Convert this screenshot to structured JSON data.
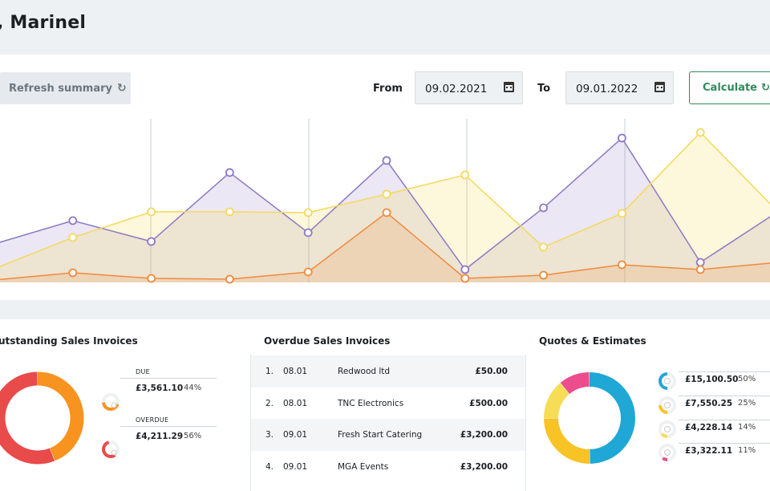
{
  "greeting": ", Marinel",
  "toolbar": {
    "refresh_label": "Refresh summary",
    "refresh_icon": "↻",
    "from_label": "From",
    "from_value": "09.02.2021",
    "to_label": "To",
    "to_value": "09.01.2022",
    "calculate_label": "Calculate",
    "calculate_icon": "↻"
  },
  "colors": {
    "purple": "#8e79c4",
    "yellow": "#f5d95a",
    "orange": "#f08a3c",
    "green": "#2f8a5b",
    "red": "#e94a4a",
    "amber": "#f7931e",
    "blue": "#1fa8d6",
    "pink": "#ee4d8d",
    "gold": "#f7c325",
    "lemon": "#f6dd55"
  },
  "chart_data": {
    "type": "area",
    "series": [
      {
        "key": "purple",
        "values": [
          48,
          77,
          51,
          137,
          62,
          152,
          16,
          93,
          180,
          25,
          89
        ]
      },
      {
        "key": "yellow",
        "values": [
          17,
          56,
          88,
          88,
          87,
          110,
          134,
          44,
          86,
          187,
          87
        ]
      },
      {
        "key": "orange",
        "values": [
          3,
          12,
          5,
          4,
          13,
          87,
          5,
          9,
          22,
          16,
          25
        ]
      }
    ],
    "ylim": [
      0,
      200
    ]
  },
  "outstanding": {
    "title": "utstanding Sales Invoices",
    "due_label": "DUE",
    "due_amount": "£3,561.10",
    "due_pct": "44%",
    "overdue_label": "OVERDUE",
    "overdue_amount": "£4,211.29",
    "overdue_pct": "56%",
    "shares": [
      44,
      56
    ]
  },
  "overdue": {
    "title": "Overdue Sales Invoices",
    "rows": [
      {
        "num": "1.",
        "date": "08.01",
        "name": "Redwood ltd",
        "amount": "£50.00"
      },
      {
        "num": "2.",
        "date": "08.01",
        "name": "TNC Electronics",
        "amount": "£500.00"
      },
      {
        "num": "3.",
        "date": "09.01",
        "name": "Fresh Start Catering",
        "amount": "£3,200.00"
      },
      {
        "num": "4.",
        "date": "09.01",
        "name": "MGA Events",
        "amount": "£3,200.00"
      }
    ]
  },
  "quotes": {
    "title": "Quotes & Estimates",
    "items": [
      {
        "amount": "£15,100.50",
        "pct": "50%",
        "share": 50
      },
      {
        "amount": "£7,550.25",
        "pct": "25%",
        "share": 25
      },
      {
        "amount": "£4,228.14",
        "pct": "14%",
        "share": 14
      },
      {
        "amount": "£3,322.11",
        "pct": "11%",
        "share": 11
      }
    ]
  }
}
